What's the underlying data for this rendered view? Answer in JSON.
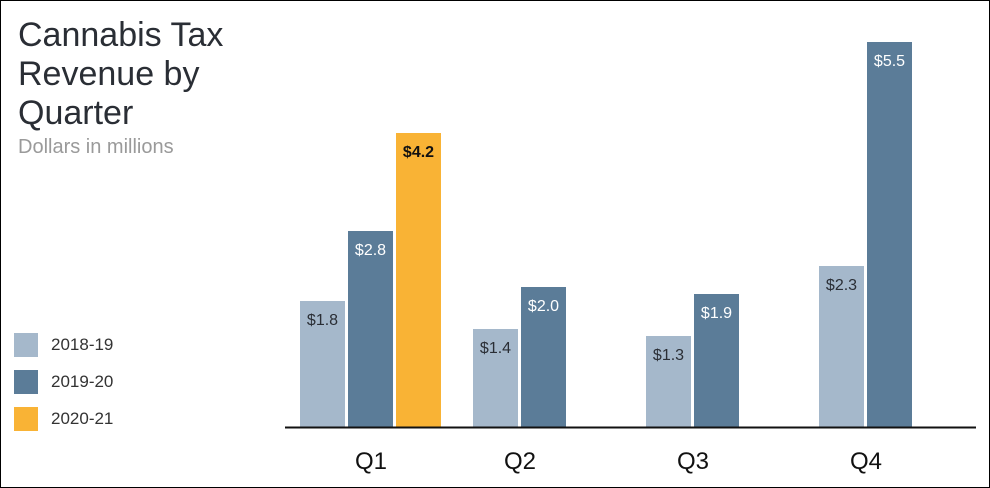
{
  "chart_data": {
    "type": "bar",
    "title": "Cannabis Tax Revenue by Quarter",
    "subtitle": "Dollars in millions",
    "categories": [
      "Q1",
      "Q2",
      "Q3",
      "Q4"
    ],
    "series": [
      {
        "name": "2018-19",
        "color": "#a5b8cb",
        "values": [
          1.8,
          1.4,
          1.3,
          2.3
        ],
        "labels": [
          "$1.8",
          "$1.4",
          "$1.3",
          "$2.3"
        ]
      },
      {
        "name": "2019-20",
        "color": "#5b7c98",
        "values": [
          2.8,
          2.0,
          1.9,
          5.5
        ],
        "labels": [
          "$2.8",
          "$2.0",
          "$1.9",
          "$5.5"
        ]
      },
      {
        "name": "2020-21",
        "color": "#f9b335",
        "values": [
          4.2,
          null,
          null,
          null
        ],
        "labels": [
          "$4.2",
          "",
          "",
          ""
        ]
      }
    ],
    "ylim": [
      0,
      5.5
    ],
    "grid": false,
    "legend_position": "bottom-left"
  }
}
